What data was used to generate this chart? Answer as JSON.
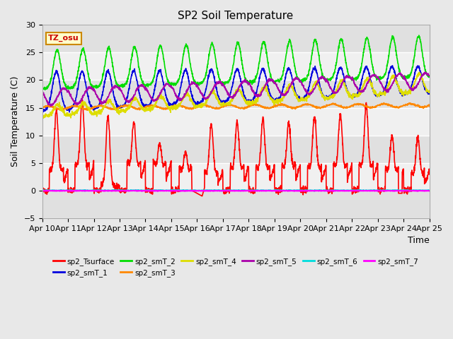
{
  "title": "SP2 Soil Temperature",
  "xlabel": "Time",
  "ylabel": "Soil Temperature (C)",
  "ylim": [
    -5,
    30
  ],
  "yticks": [
    -5,
    0,
    5,
    10,
    15,
    20,
    25,
    30
  ],
  "xtick_labels": [
    "Apr 10",
    "Apr 11",
    "Apr 12",
    "Apr 13",
    "Apr 14",
    "Apr 15",
    "Apr 16",
    "Apr 17",
    "Apr 18",
    "Apr 19",
    "Apr 20",
    "Apr 21",
    "Apr 22",
    "Apr 23",
    "Apr 24",
    "Apr 25"
  ],
  "tz_label": "TZ_osu",
  "series_colors": {
    "sp2_Tsurface": "#ff0000",
    "sp2_smT_1": "#0000dd",
    "sp2_smT_2": "#00dd00",
    "sp2_smT_3": "#ff8800",
    "sp2_smT_4": "#dddd00",
    "sp2_smT_5": "#aa00aa",
    "sp2_smT_6": "#00dddd",
    "sp2_smT_7": "#ff00ff"
  },
  "lw": 1.2,
  "title_fontsize": 11,
  "axis_fontsize": 9,
  "tick_fontsize": 8,
  "bg_outer": "#e8e8e8",
  "bg_plot": "#f0f0f0",
  "grid_color": "#ffffff",
  "band_color": "#e0e0e0"
}
